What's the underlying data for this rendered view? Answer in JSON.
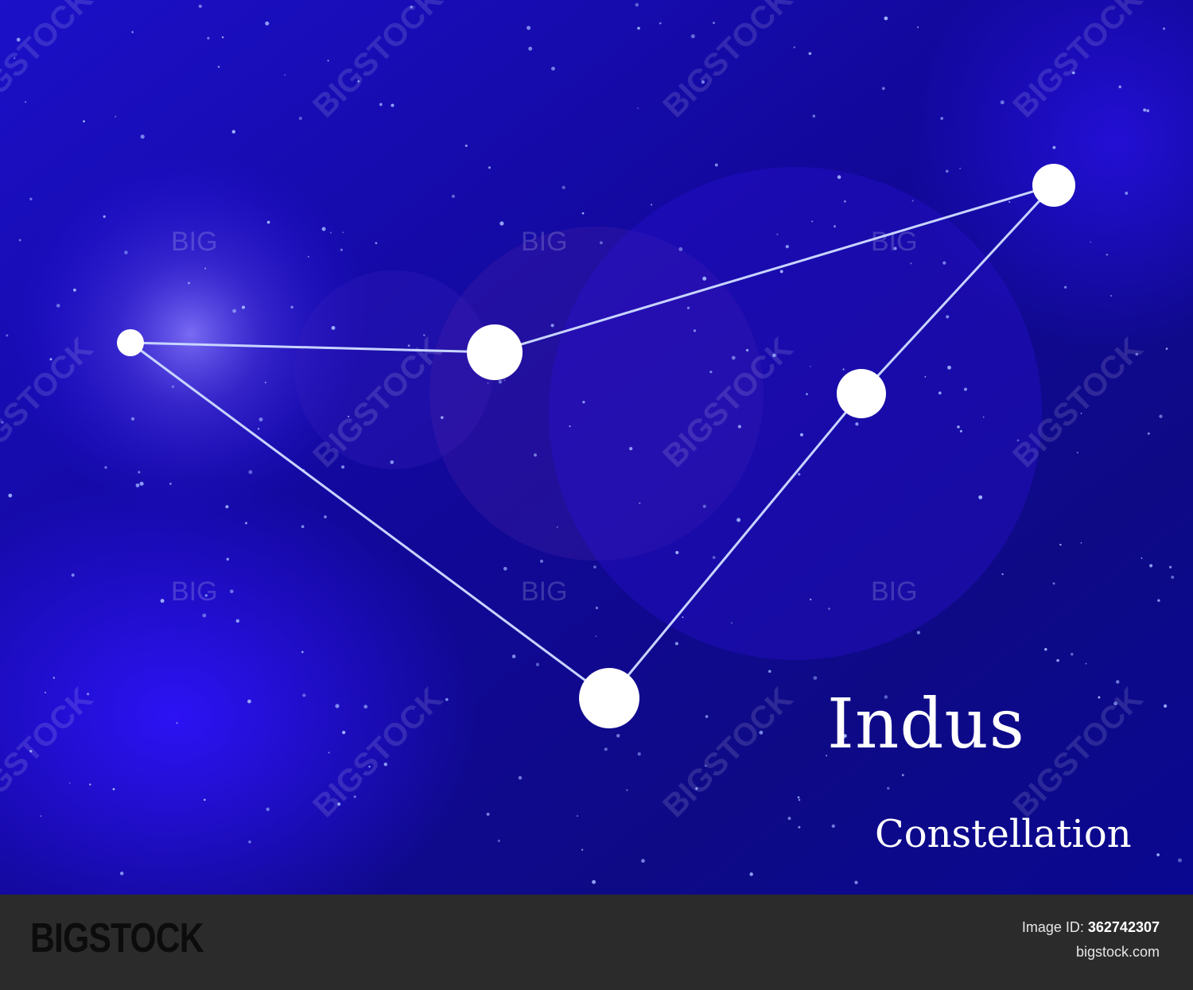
{
  "title": {
    "main": "Indus",
    "sub": "Constellation"
  },
  "watermark": {
    "large": "BIGSTOCK",
    "small": "BIG"
  },
  "footer": {
    "brand": "BIGSTOCK",
    "image_id_label": "Image ID:",
    "image_id": "362742307",
    "site": "bigstock.com"
  },
  "colors": {
    "sky_dark": "#0a0a6e",
    "sky_bright": "#2a10f0",
    "star": "#ffffff",
    "line": "#c8d4ff",
    "footer_bg": "#2b2b2b"
  }
}
